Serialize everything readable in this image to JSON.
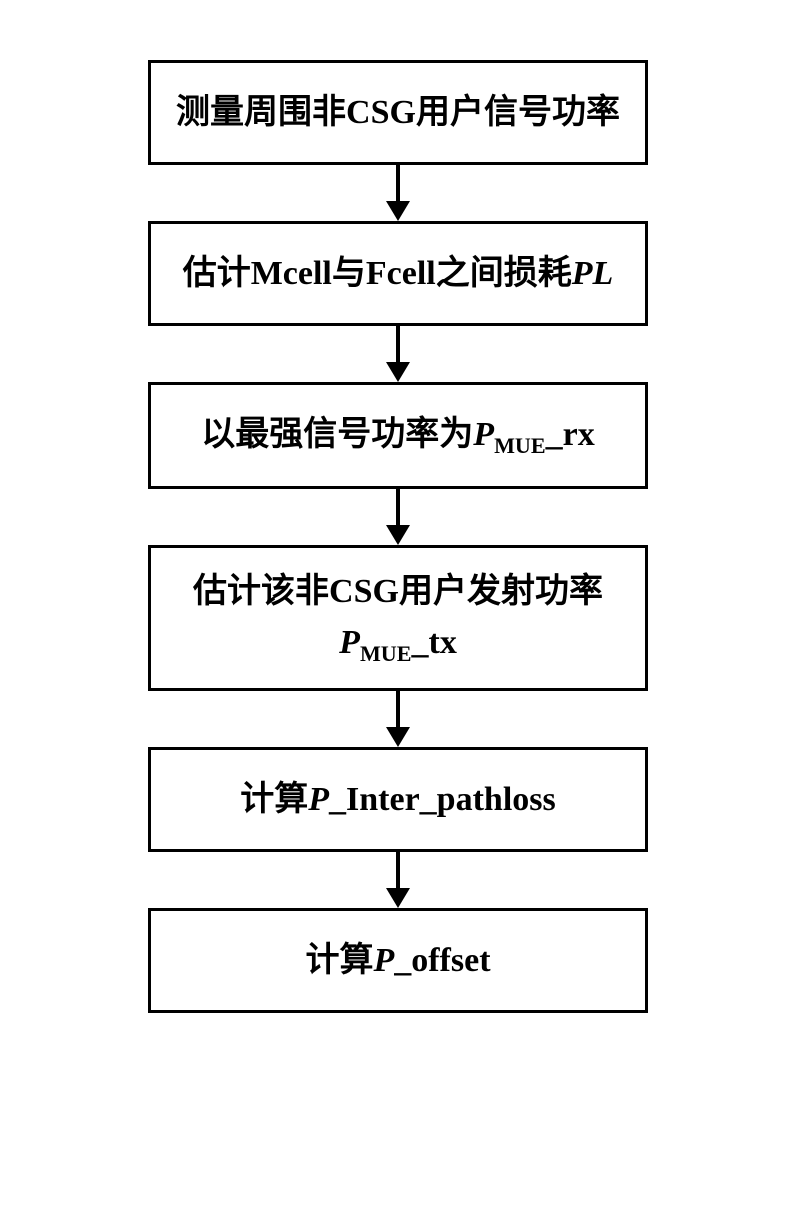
{
  "flowchart": {
    "type": "flowchart",
    "direction": "vertical",
    "box_border_color": "#000000",
    "box_border_width": 3,
    "box_background": "#ffffff",
    "arrow_color": "#000000",
    "font_size": 34,
    "font_weight": "bold",
    "steps": [
      {
        "text_plain": "测量周围非CSG用户信号功率",
        "segments": [
          {
            "t": "测量周围非CSG用户信号功率",
            "style": "normal"
          }
        ]
      },
      {
        "text_plain": "估计Mcell与Fcell之间损耗PL",
        "segments": [
          {
            "t": "估计Mcell与Fcell之间损耗",
            "style": "normal"
          },
          {
            "t": "PL",
            "style": "italic"
          }
        ]
      },
      {
        "text_plain": "以最强信号功率为P_MUE_rx",
        "segments": [
          {
            "t": "以最强信号功率为",
            "style": "normal"
          },
          {
            "t": "P",
            "style": "italic"
          },
          {
            "t": "MUE",
            "style": "sub"
          },
          {
            "t": "_rx",
            "style": "normal"
          }
        ]
      },
      {
        "text_plain": "估计该非CSG用户发射功率 P_MUE_tx",
        "line1_segments": [
          {
            "t": "估计该非CSG用户发射功率",
            "style": "normal"
          }
        ],
        "line2_segments": [
          {
            "t": "P",
            "style": "italic"
          },
          {
            "t": "MUE",
            "style": "sub"
          },
          {
            "t": "_tx",
            "style": "normal"
          }
        ]
      },
      {
        "text_plain": "计算P_Inter_pathloss",
        "segments": [
          {
            "t": "计算",
            "style": "normal"
          },
          {
            "t": "P",
            "style": "italic"
          },
          {
            "t": "_Inter_pathloss",
            "style": "normal"
          }
        ]
      },
      {
        "text_plain": "计算P_offset",
        "segments": [
          {
            "t": "计算",
            "style": "normal"
          },
          {
            "t": "P",
            "style": "italic"
          },
          {
            "t": "_offset",
            "style": "normal"
          }
        ]
      }
    ]
  }
}
